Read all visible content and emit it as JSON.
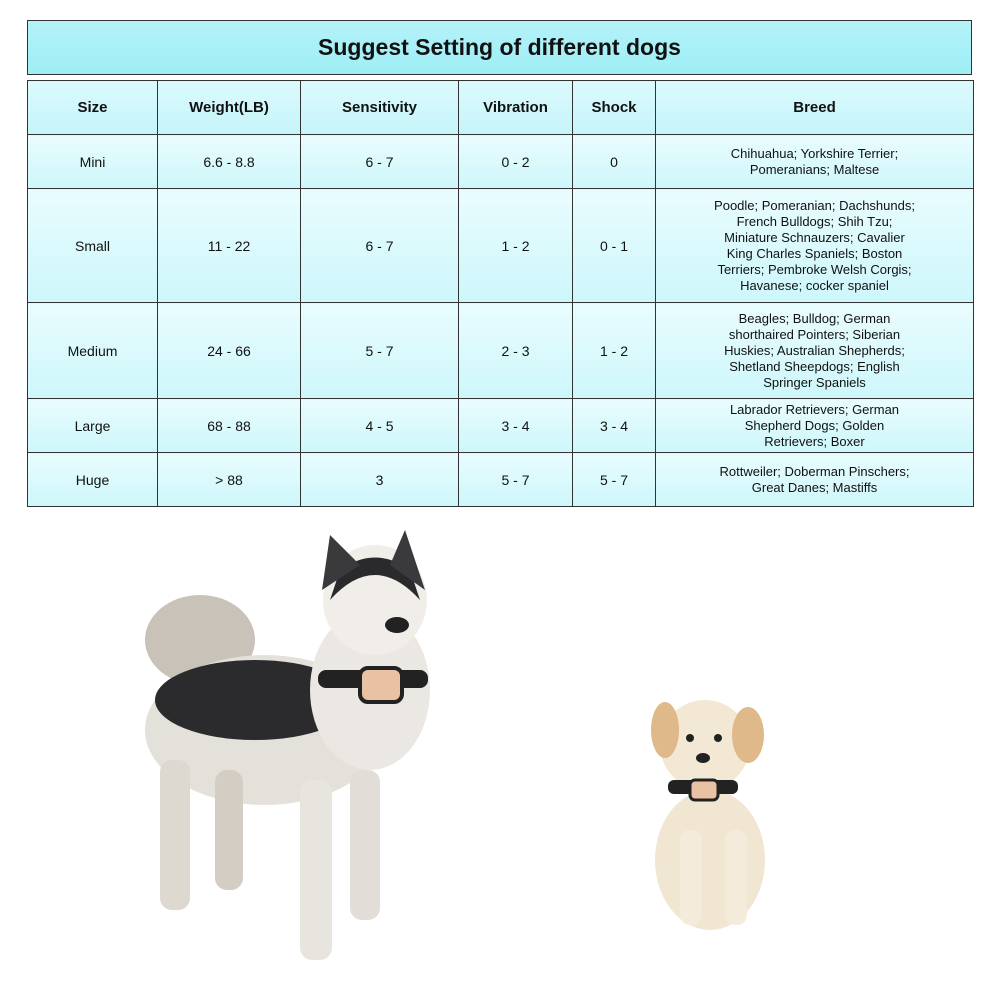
{
  "title": "Suggest Setting of different dogs",
  "table": {
    "header": [
      "Size",
      "Weight(LB)",
      "Sensitivity",
      "Vibration",
      "Shock",
      "Breed"
    ],
    "rows": [
      [
        "Mini",
        "6.6 - 8.8",
        "6 - 7",
        "0 - 2",
        "0",
        [
          "Chihuahua; Yorkshire Terrier;",
          "Pomeranians; Maltese"
        ]
      ],
      [
        "Small",
        "11 - 22",
        "6 - 7",
        "1 - 2",
        "0 - 1",
        [
          "Poodle; Pomeranian; Dachshunds;",
          "French Bulldogs; Shih Tzu;",
          "Miniature Schnauzers; Cavalier",
          "King Charles Spaniels; Boston",
          "Terriers; Pembroke Welsh Corgis;",
          "Havanese; cocker spaniel"
        ]
      ],
      [
        "Medium",
        "24 - 66",
        "5 - 7",
        "2 - 3",
        "1 - 2",
        [
          "Beagles; Bulldog; German",
          "shorthaired Pointers; Siberian",
          "Huskies; Australian Shepherds;",
          "Shetland Sheepdogs; English",
          "Springer Spaniels"
        ]
      ],
      [
        "Large",
        "68 - 88",
        "4 - 5",
        "3 - 4",
        "3 - 4",
        [
          "Labrador Retrievers; German",
          "Shepherd Dogs; Golden",
          "Retrievers; Boxer"
        ]
      ],
      [
        "Huge",
        "> 88",
        "3",
        "5 - 7",
        "5 - 7",
        [
          "Rottweiler; Doberman Pinschers;",
          "Great Danes; Mastiffs"
        ]
      ]
    ]
  }
}
